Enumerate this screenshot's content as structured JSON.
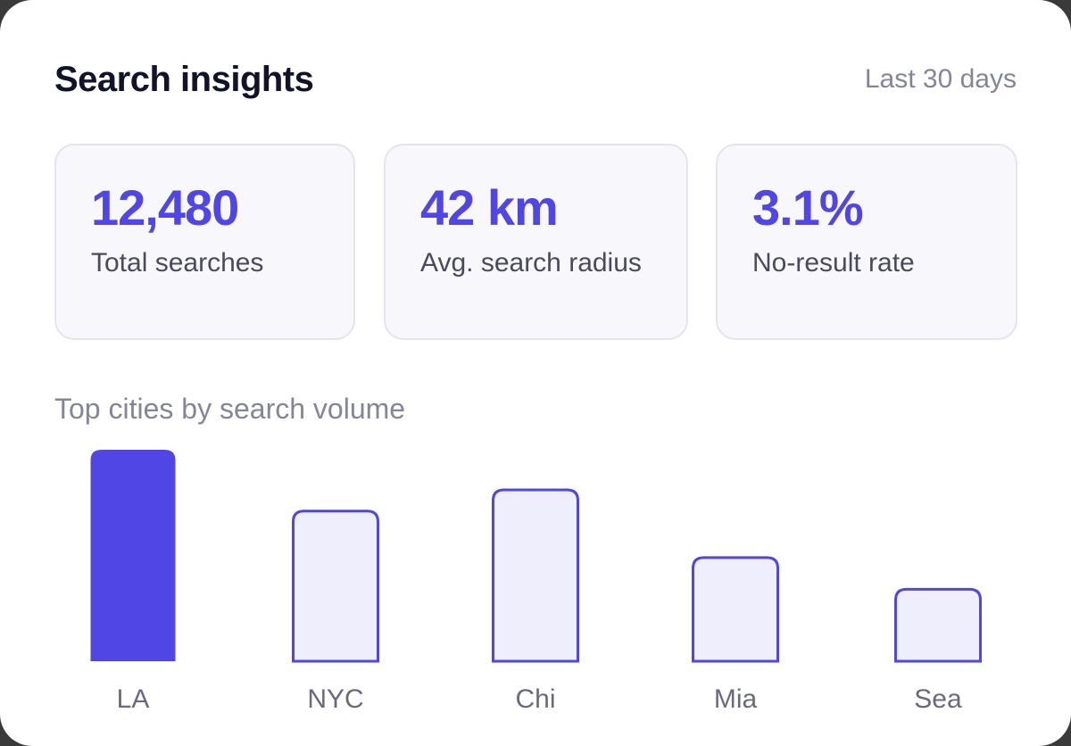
{
  "header": {
    "title": "Search insights",
    "range": "Last 30 days"
  },
  "stats": [
    {
      "value": "12,480",
      "label": "Total searches"
    },
    {
      "value": "42 km",
      "label": "Avg. search radius"
    },
    {
      "value": "3.1%",
      "label": "No-result rate"
    }
  ],
  "chart_title": "Top cities by search volume",
  "colors": {
    "accent": "#4f46e5",
    "bar_fill_light": "#eeeefc"
  },
  "chart_data": {
    "type": "bar",
    "title": "Top cities by search volume",
    "categories": [
      "LA",
      "NYC",
      "Chi",
      "Mia",
      "Sea"
    ],
    "values": [
      100,
      71,
      81,
      49,
      34
    ],
    "highlight_index": 0,
    "ylim": [
      0,
      100
    ],
    "grid": false,
    "legend": "none"
  }
}
